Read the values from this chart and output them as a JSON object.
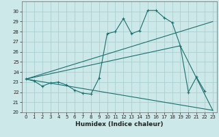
{
  "xlabel": "Humidex (Indice chaleur)",
  "bg_color": "#cce8e8",
  "grid_color": "#aacfcf",
  "line_color": "#1a6e6e",
  "xlim": [
    -0.5,
    23.5
  ],
  "ylim": [
    20,
    31
  ],
  "yticks": [
    20,
    21,
    22,
    23,
    24,
    25,
    26,
    27,
    28,
    29,
    30
  ],
  "xticks": [
    0,
    1,
    2,
    3,
    4,
    5,
    6,
    7,
    8,
    9,
    10,
    11,
    12,
    13,
    14,
    15,
    16,
    17,
    18,
    19,
    20,
    21,
    22,
    23
  ],
  "line1_x": [
    0,
    1,
    2,
    3,
    4,
    5,
    6,
    7,
    8,
    9,
    10,
    11,
    12,
    13,
    14,
    15,
    16,
    17,
    18,
    19,
    20,
    21,
    22
  ],
  "line1_y": [
    23.3,
    23.1,
    22.6,
    22.9,
    23.0,
    22.7,
    22.2,
    21.9,
    21.8,
    23.4,
    27.8,
    28.0,
    29.3,
    27.8,
    28.1,
    30.1,
    30.1,
    29.4,
    28.9,
    26.6,
    22.0,
    23.5,
    22.1
  ],
  "line2_x": [
    0,
    23
  ],
  "line2_y": [
    23.3,
    29.0
  ],
  "line3_x": [
    0,
    19,
    23
  ],
  "line3_y": [
    23.3,
    26.6,
    20.2
  ],
  "line4_x": [
    0,
    23
  ],
  "line4_y": [
    23.3,
    20.2
  ],
  "xlabel_fontsize": 6.5,
  "tick_fontsize": 5.0
}
